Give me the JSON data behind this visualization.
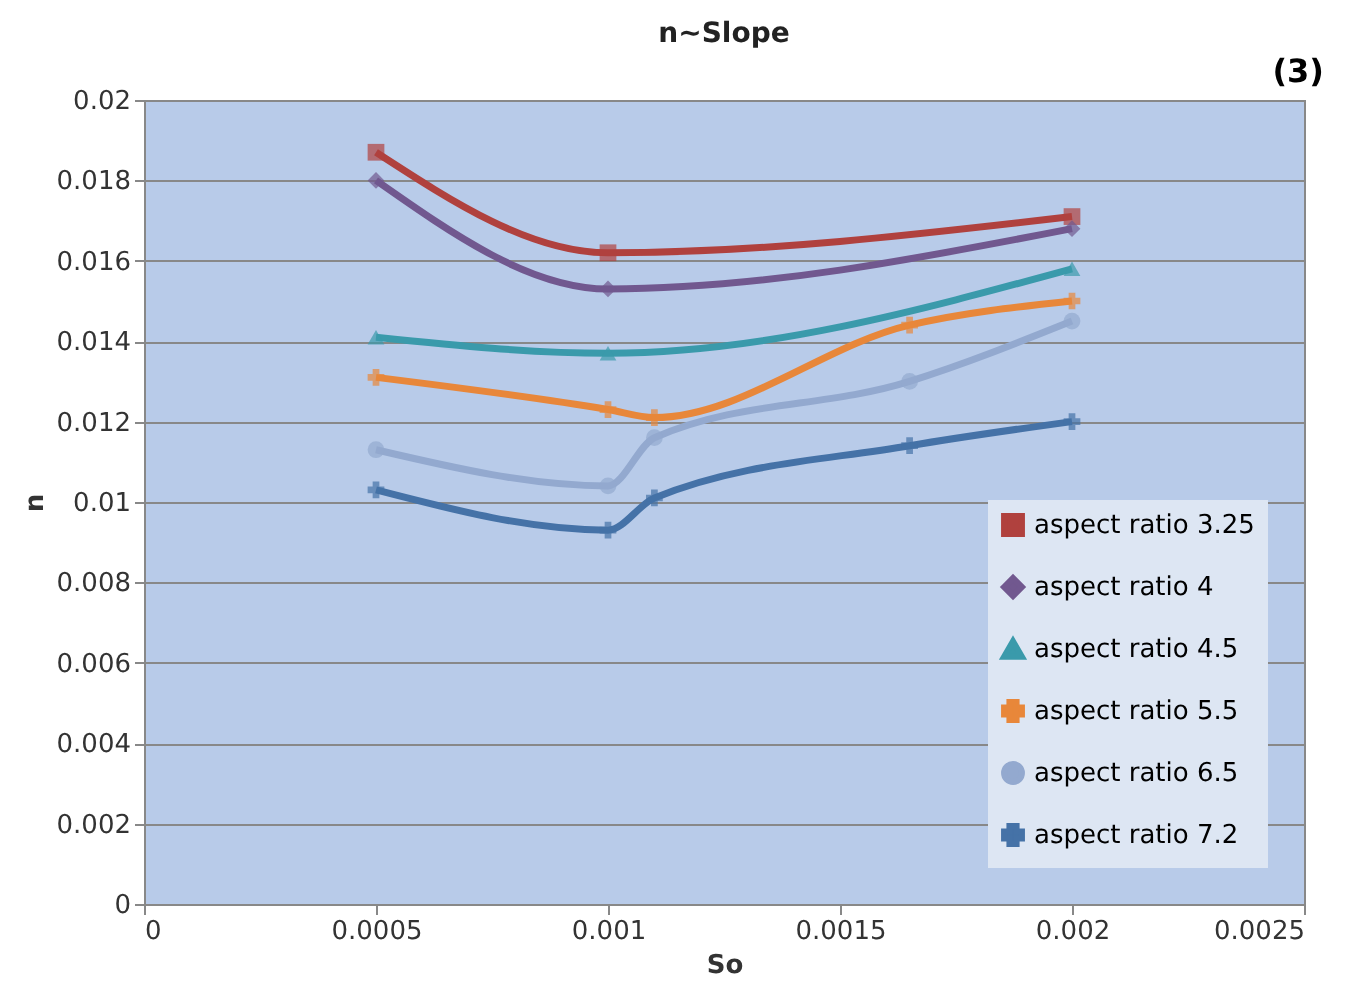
{
  "chart_data": {
    "type": "line",
    "title": "n~Slope",
    "xlabel": "So",
    "ylabel": "n",
    "annotations": [
      "(3)"
    ],
    "xlim": [
      0,
      0.0025
    ],
    "xticks": [
      0,
      0.0005,
      0.001,
      0.0015,
      0.002,
      0.0025
    ],
    "ylim": [
      0,
      0.02
    ],
    "yticks": [
      0,
      0.002,
      0.004,
      0.006,
      0.008,
      0.01,
      0.012,
      0.014,
      0.016,
      0.018,
      0.02
    ],
    "grid": "y",
    "legend": "bottom right",
    "line_style": "solid",
    "series": [
      {
        "name": "aspect ratio 3.25",
        "color": "#b0413e",
        "marker": "square",
        "x": [
          0.0005,
          0.001,
          0.002
        ],
        "values": [
          0.0187,
          0.0162,
          0.0171
        ]
      },
      {
        "name": "aspect ratio 4",
        "color": "#71588f",
        "marker": "diamond",
        "x": [
          0.0005,
          0.001,
          0.002
        ],
        "values": [
          0.018,
          0.0153,
          0.0168
        ]
      },
      {
        "name": "aspect ratio 4.5",
        "color": "#3a9aab",
        "marker": "triangle",
        "x": [
          0.0005,
          0.001,
          0.002
        ],
        "values": [
          0.0141,
          0.0137,
          0.0158
        ]
      },
      {
        "name": "aspect ratio 5.5",
        "color": "#e8873a",
        "marker": "cross",
        "x": [
          0.0005,
          0.001,
          0.0011,
          0.00165,
          0.002
        ],
        "values": [
          0.0131,
          0.0123,
          0.0121,
          0.0144,
          0.015
        ]
      },
      {
        "name": "aspect ratio 6.5",
        "color": "#93a9cf",
        "marker": "circle",
        "x": [
          0.0005,
          0.001,
          0.0011,
          0.00165,
          0.002
        ],
        "values": [
          0.0113,
          0.0104,
          0.0116,
          0.013,
          0.0145
        ]
      },
      {
        "name": "aspect ratio 7.2",
        "color": "#4572a7",
        "marker": "cross",
        "x": [
          0.0005,
          0.001,
          0.0011,
          0.00165,
          0.002
        ],
        "values": [
          0.0103,
          0.0093,
          0.0101,
          0.0114,
          0.012
        ]
      }
    ]
  }
}
